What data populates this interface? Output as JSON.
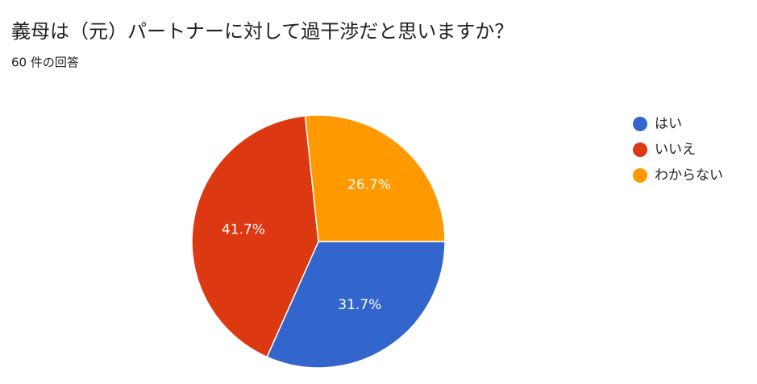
{
  "chart_data": {
    "type": "pie",
    "title": "義母は（元）パートナーに対して過干渉だと思いますか？",
    "subtitle": "60 件の回答",
    "categories": [
      "はい",
      "いいえ",
      "わからない"
    ],
    "values": [
      31.7,
      41.7,
      26.7
    ],
    "value_labels": [
      "31.7%",
      "41.7%",
      "26.7%"
    ],
    "colors": [
      "#3366cc",
      "#dc3912",
      "#ff9900"
    ],
    "legend": "right"
  }
}
